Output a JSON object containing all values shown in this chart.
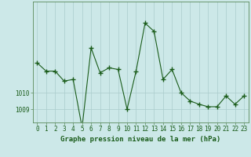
{
  "x": [
    0,
    1,
    2,
    3,
    4,
    5,
    6,
    7,
    8,
    9,
    10,
    11,
    12,
    13,
    14,
    15,
    16,
    17,
    18,
    19,
    20,
    21,
    22,
    23
  ],
  "y": [
    1011.8,
    1011.3,
    1011.3,
    1010.7,
    1010.8,
    1007.9,
    1012.7,
    1011.2,
    1011.5,
    1011.4,
    1009.0,
    1011.3,
    1014.2,
    1013.7,
    1010.8,
    1011.4,
    1010.0,
    1009.5,
    1009.3,
    1009.15,
    1009.15,
    1009.8,
    1009.3,
    1009.8
  ],
  "line_color": "#1a5c1a",
  "marker_size": 3,
  "bg_color": "#cce8e8",
  "grid_color": "#aacccc",
  "xlabel": "Graphe pression niveau de la mer (hPa)",
  "xlabel_fontsize": 6.5,
  "tick_label_fontsize": 5.5,
  "ytick_labels": [
    "1009",
    "1010"
  ],
  "ytick_positions": [
    1009,
    1010
  ],
  "ylim": [
    1008.2,
    1015.5
  ],
  "xlim": [
    -0.5,
    23.5
  ]
}
